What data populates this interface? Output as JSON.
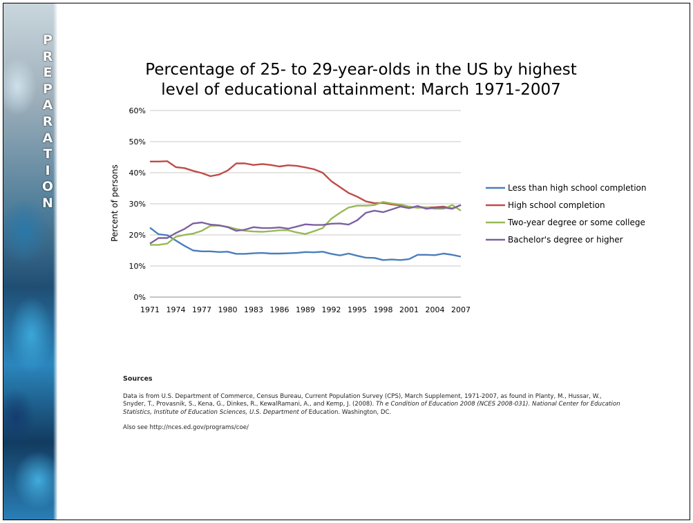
{
  "sidebar": {
    "letters": [
      "P",
      "R",
      "E",
      "P",
      "A",
      "R",
      "A",
      "T",
      "I",
      "O",
      "N"
    ]
  },
  "chart_data": {
    "type": "line",
    "title_lines": [
      "Percentage of 25- to 29-year-olds in the US by highest",
      "level of educational attainment: March 1971-2007"
    ],
    "xlabel": "",
    "ylabel": "Percent of persons",
    "x": [
      1971,
      1972,
      1973,
      1974,
      1975,
      1976,
      1977,
      1978,
      1979,
      1980,
      1981,
      1982,
      1983,
      1984,
      1985,
      1986,
      1987,
      1988,
      1989,
      1990,
      1991,
      1992,
      1993,
      1994,
      1995,
      1996,
      1997,
      1998,
      1999,
      2000,
      2001,
      2002,
      2003,
      2004,
      2005,
      2006,
      2007
    ],
    "x_ticks": [
      "1971",
      "1974",
      "1977",
      "1980",
      "1983",
      "1986",
      "1989",
      "1992",
      "1995",
      "1998",
      "2001",
      "2004",
      "2007"
    ],
    "y_ticks": [
      "0%",
      "10%",
      "20%",
      "30%",
      "40%",
      "50%",
      "60%"
    ],
    "ylim": [
      0,
      60
    ],
    "grid": "horizontal",
    "legend_position": "right",
    "series": [
      {
        "name": "Less than high school completion",
        "color": "#4a7ebb",
        "values": [
          22.3,
          20.2,
          19.9,
          18.2,
          16.5,
          15.0,
          14.7,
          14.7,
          14.5,
          14.6,
          13.9,
          13.9,
          14.1,
          14.2,
          14.0,
          14.0,
          14.1,
          14.2,
          14.5,
          14.4,
          14.6,
          13.9,
          13.4,
          14.0,
          13.3,
          12.7,
          12.6,
          11.9,
          12.1,
          11.9,
          12.2,
          13.6,
          13.6,
          13.5,
          14.0,
          13.6,
          13.0
        ]
      },
      {
        "name": "High school completion",
        "color": "#be4b48",
        "values": [
          43.6,
          43.6,
          43.7,
          41.8,
          41.5,
          40.6,
          39.9,
          38.9,
          39.4,
          40.7,
          43.0,
          43.0,
          42.5,
          42.8,
          42.5,
          42.0,
          42.4,
          42.2,
          41.7,
          41.1,
          40.0,
          37.3,
          35.4,
          33.5,
          32.3,
          30.8,
          30.2,
          30.3,
          29.8,
          29.5,
          28.8,
          29.0,
          28.8,
          28.9,
          29.1,
          28.5,
          29.6
        ]
      },
      {
        "name": "Two-year degree or some college",
        "color": "#98b954",
        "values": [
          16.8,
          16.8,
          17.2,
          19.4,
          20.0,
          20.4,
          21.3,
          22.9,
          23.0,
          22.6,
          21.9,
          21.3,
          21.1,
          21.0,
          21.2,
          21.5,
          21.5,
          20.8,
          20.3,
          21.2,
          22.2,
          25.2,
          27.1,
          28.8,
          29.4,
          29.4,
          29.6,
          30.6,
          30.1,
          29.8,
          29.1,
          28.7,
          28.9,
          28.4,
          28.4,
          29.6,
          27.8
        ]
      },
      {
        "name": "Bachelor's degree or higher",
        "color": "#7d60a0",
        "values": [
          17.2,
          19.0,
          19.0,
          20.6,
          21.9,
          23.7,
          24.0,
          23.3,
          23.1,
          22.5,
          21.3,
          21.7,
          22.5,
          22.2,
          22.2,
          22.4,
          22.0,
          22.7,
          23.4,
          23.2,
          23.2,
          23.6,
          23.7,
          23.3,
          24.7,
          27.1,
          27.8,
          27.3,
          28.2,
          29.1,
          28.6,
          29.3,
          28.4,
          28.7,
          28.8,
          28.4,
          29.6
        ]
      }
    ]
  },
  "sources": {
    "heading": "Sources",
    "text_plain": "Data is from U.S. Department of Commerce, Census Bureau, Current Population Survey (CPS), March Supplement, 1971-2007, as found in Planty, M., Hussar, W., Snyder, T., Provasnik, S., Kena, G., Dinkes, R., KewalRamani, A., and Kemp, J. (2008). ",
    "text_italic": "Th e Condition of Education 2008 (NCES 2008-031). National Center for Education Statistics, Institute of Education Sciences, U.S. Department of",
    "text_tail": " Education. Washington, DC.",
    "also": "Also see http://nces.ed.gov/programs/coe/"
  }
}
